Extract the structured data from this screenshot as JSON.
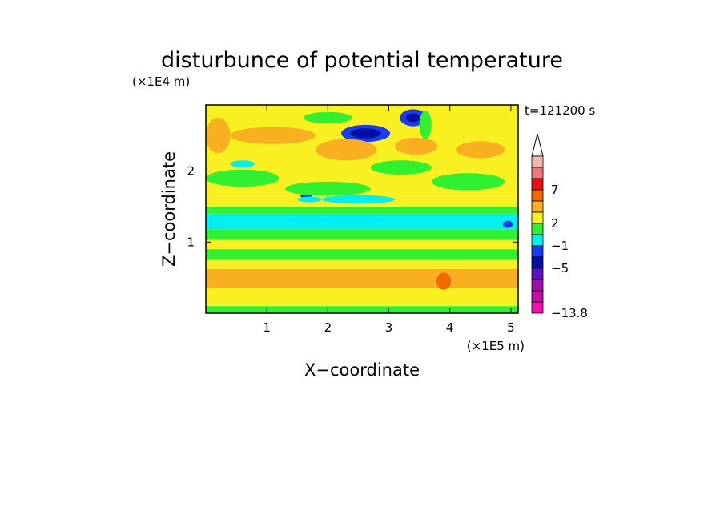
{
  "chart_data": {
    "type": "heatmap",
    "title": "disturbunce of potential temperature",
    "time_label": "t=121200 s",
    "x": {
      "label": "X−coordinate",
      "unit_label": "(×1E5 m)",
      "range": [
        0,
        5.12
      ],
      "ticks": [
        1,
        2,
        3,
        4,
        5
      ],
      "tick_labels": [
        "1",
        "2",
        "3",
        "4",
        "5"
      ]
    },
    "y": {
      "label": "Z−coordinate",
      "unit_label": "(×1E4 m)",
      "range": [
        0,
        2.93
      ],
      "ticks": [
        1,
        2
      ],
      "tick_labels": [
        "1",
        "2"
      ]
    },
    "colorbar": {
      "labels": [
        "7",
        "2",
        "−1",
        "−5",
        "−13.8"
      ],
      "label_values": [
        7,
        2,
        -1,
        -5,
        -13.8
      ],
      "levels_top_to_bottom": [
        {
          "color": "#f5b8b0"
        },
        {
          "color": "#f07878"
        },
        {
          "color": "#e81010"
        },
        {
          "color": "#f06a00"
        },
        {
          "color": "#f8b020"
        },
        {
          "color": "#f8f020"
        },
        {
          "color": "#30f030"
        },
        {
          "color": "#00f0f0"
        },
        {
          "color": "#1a3cf0"
        },
        {
          "color": "#0010a0"
        },
        {
          "color": "#6010c0"
        },
        {
          "color": "#a010b0"
        },
        {
          "color": "#c010a8"
        },
        {
          "color": "#f010b0"
        }
      ]
    },
    "bands_bottom_to_top": [
      {
        "z": [
          0.0,
          0.1
        ],
        "color": "#30f030"
      },
      {
        "z": [
          0.1,
          0.35
        ],
        "color": "#f8f020"
      },
      {
        "z": [
          0.35,
          0.62
        ],
        "color": "#f8b020"
      },
      {
        "z": [
          0.62,
          0.75
        ],
        "color": "#f8f020"
      },
      {
        "z": [
          0.75,
          0.9
        ],
        "color": "#30f030"
      },
      {
        "z": [
          0.9,
          1.03
        ],
        "color": "#f8f020"
      },
      {
        "z": [
          1.03,
          1.18
        ],
        "color": "#30f030"
      },
      {
        "z": [
          1.18,
          1.4
        ],
        "color": "#00f0f0"
      },
      {
        "z": [
          1.4,
          1.5
        ],
        "color": "#30f030"
      },
      {
        "z": [
          1.5,
          1.65
        ],
        "color": "#f8f020"
      },
      {
        "z": [
          1.65,
          2.93
        ],
        "color": "#f8f020"
      }
    ],
    "features": [
      {
        "x": 2.62,
        "z": 2.53,
        "rx": 0.4,
        "rz": 0.12,
        "color": "#1a3cf0"
      },
      {
        "x": 2.62,
        "z": 2.53,
        "rx": 0.25,
        "rz": 0.07,
        "color": "#0010a0"
      },
      {
        "x": 3.4,
        "z": 2.75,
        "rx": 0.22,
        "rz": 0.12,
        "color": "#1a3cf0"
      },
      {
        "x": 3.4,
        "z": 2.75,
        "rx": 0.12,
        "rz": 0.06,
        "color": "#0010a0"
      },
      {
        "x": 1.65,
        "z": 1.65,
        "rx": 0.1,
        "rz": 0.03,
        "color": "#1a3cf0"
      },
      {
        "x": 4.95,
        "z": 1.25,
        "rx": 0.08,
        "rz": 0.05,
        "color": "#1a3cf0"
      },
      {
        "x": 3.9,
        "z": 0.45,
        "rx": 0.12,
        "rz": 0.12,
        "color": "#f06a00"
      },
      {
        "x": 2.3,
        "z": 2.3,
        "rx": 0.5,
        "rz": 0.15,
        "color": "#f8b020"
      },
      {
        "x": 3.45,
        "z": 2.35,
        "rx": 0.35,
        "rz": 0.12,
        "color": "#f8b020"
      },
      {
        "x": 1.1,
        "z": 2.5,
        "rx": 0.7,
        "rz": 0.12,
        "color": "#f8b020"
      },
      {
        "x": 4.5,
        "z": 2.3,
        "rx": 0.4,
        "rz": 0.12,
        "color": "#f8b020"
      },
      {
        "x": 0.2,
        "z": 2.5,
        "rx": 0.2,
        "rz": 0.25,
        "color": "#f8b020"
      },
      {
        "x": 0.6,
        "z": 1.9,
        "rx": 0.6,
        "rz": 0.12,
        "color": "#30f030"
      },
      {
        "x": 2.0,
        "z": 1.75,
        "rx": 0.7,
        "rz": 0.1,
        "color": "#30f030"
      },
      {
        "x": 3.2,
        "z": 2.05,
        "rx": 0.5,
        "rz": 0.1,
        "color": "#30f030"
      },
      {
        "x": 4.3,
        "z": 1.85,
        "rx": 0.6,
        "rz": 0.12,
        "color": "#30f030"
      },
      {
        "x": 2.0,
        "z": 2.75,
        "rx": 0.4,
        "rz": 0.08,
        "color": "#30f030"
      },
      {
        "x": 3.6,
        "z": 2.65,
        "rx": 0.1,
        "rz": 0.2,
        "color": "#30f030"
      },
      {
        "x": 2.5,
        "z": 1.6,
        "rx": 0.6,
        "rz": 0.06,
        "color": "#00f0f0"
      },
      {
        "x": 1.7,
        "z": 1.6,
        "rx": 0.2,
        "rz": 0.04,
        "color": "#00f0f0"
      },
      {
        "x": 0.6,
        "z": 2.1,
        "rx": 0.2,
        "rz": 0.05,
        "color": "#00f0f0"
      }
    ]
  }
}
